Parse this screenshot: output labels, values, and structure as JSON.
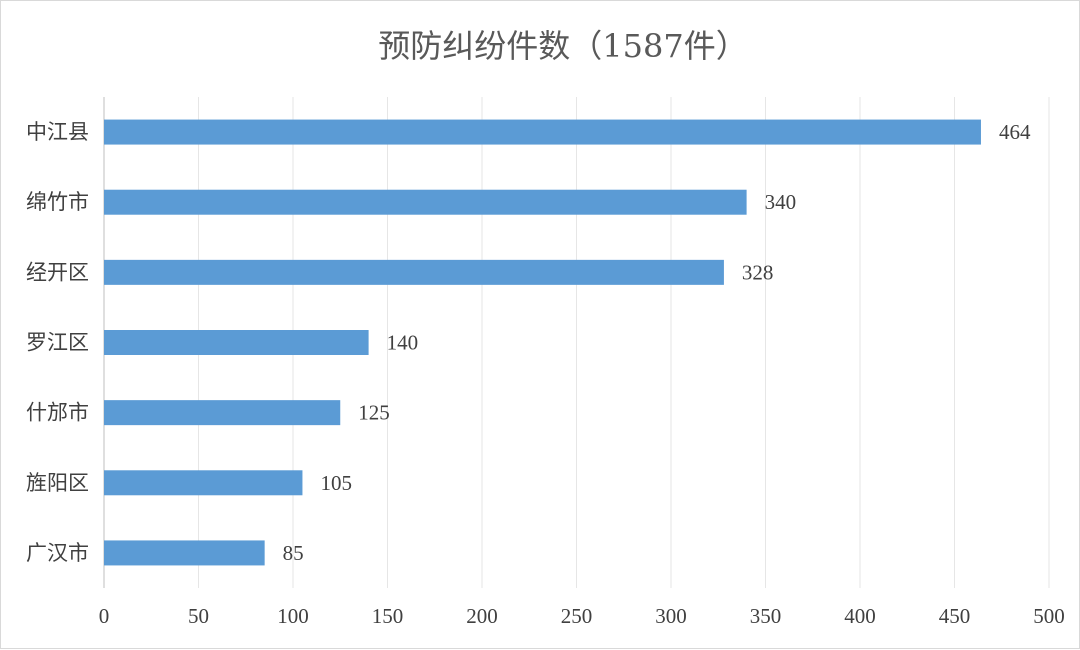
{
  "chart_data": {
    "type": "bar",
    "orientation": "horizontal",
    "title": "预防纠纷件数（1587件）",
    "categories": [
      "中江县",
      "绵竹市",
      "经开区",
      "罗江区",
      "什邡市",
      "旌阳区",
      "广汉市"
    ],
    "values": [
      464,
      340,
      328,
      140,
      125,
      105,
      85
    ],
    "xlim": [
      0,
      500
    ],
    "xticks": [
      0,
      50,
      100,
      150,
      200,
      250,
      300,
      350,
      400,
      450,
      500
    ],
    "grid": true,
    "legend": "none",
    "colors": {
      "bar": "#5b9bd5"
    }
  }
}
